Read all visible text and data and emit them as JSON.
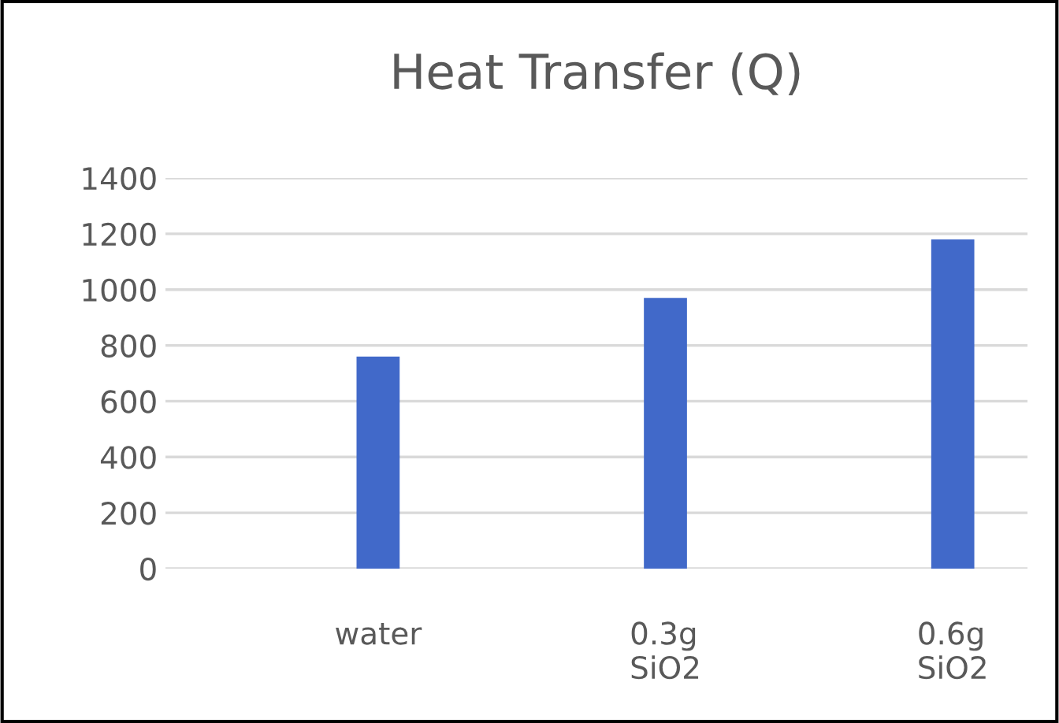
{
  "chart_data": {
    "type": "bar",
    "title": "Heat Transfer (Q)",
    "categories": [
      "water",
      "0.3g\nSiO2",
      "0.6g\nSiO2"
    ],
    "values": [
      760,
      970,
      1180
    ],
    "color": "#4169c9",
    "ylim": [
      0,
      1400
    ],
    "yticks": [
      0,
      200,
      400,
      600,
      800,
      1000,
      1200,
      1400
    ],
    "grid": "y"
  }
}
